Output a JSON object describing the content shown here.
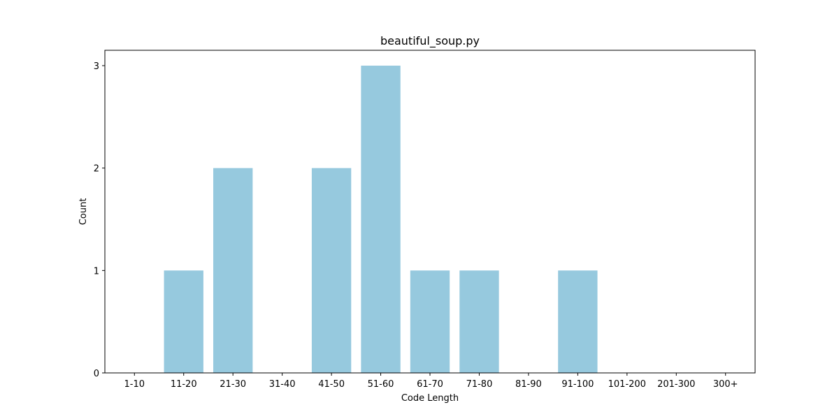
{
  "chart_data": {
    "type": "bar",
    "title": "beautiful_soup.py",
    "xlabel": "Code Length",
    "ylabel": "Count",
    "categories": [
      "1-10",
      "11-20",
      "21-30",
      "31-40",
      "41-50",
      "51-60",
      "61-70",
      "71-80",
      "81-90",
      "91-100",
      "101-200",
      "201-300",
      "300+"
    ],
    "values": [
      0,
      1,
      2,
      0,
      2,
      3,
      1,
      1,
      0,
      1,
      0,
      0,
      0
    ],
    "ylim": [
      0,
      3.15
    ],
    "yticks": [
      0,
      1,
      2,
      3
    ],
    "grid": false,
    "bar_color": "#96c9de"
  }
}
